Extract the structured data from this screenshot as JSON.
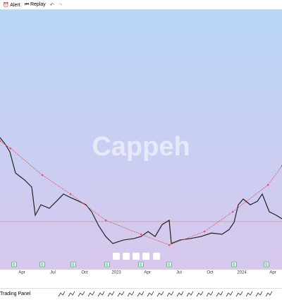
{
  "toolbar": {
    "alert": "Alert",
    "replay": "Replay"
  },
  "watermark": "Cappeh",
  "bottom_bar": {
    "trading_panel": "Trading Panel"
  },
  "chart_data": {
    "type": "line",
    "xlim": [
      0,
      100
    ],
    "ylim": [
      0,
      100
    ],
    "xticks": [
      {
        "value": 7.75,
        "label": "Apr"
      },
      {
        "value": 18.75,
        "label": "Jul"
      },
      {
        "value": 30,
        "label": "Oct"
      },
      {
        "value": 41.25,
        "label": "2023"
      },
      {
        "value": 52.25,
        "label": "Apr"
      },
      {
        "value": 63.5,
        "label": "Jul"
      },
      {
        "value": 74.5,
        "label": "Oct"
      },
      {
        "value": 85.75,
        "label": "2024"
      },
      {
        "value": 96.75,
        "label": "Apr"
      }
    ],
    "series": [
      {
        "color": "#222222",
        "x": [
          0,
          2,
          3.5,
          5.5,
          8.75,
          11.25,
          12.5,
          14.5,
          17.5,
          20,
          22.5,
          25,
          28,
          30.5,
          32.5,
          35,
          37.5,
          40,
          43.75,
          47.5,
          50,
          52.5,
          55,
          57.5,
          60,
          60.75,
          63.75,
          67.5,
          71.25,
          75,
          78.75,
          81.25,
          83,
          84.5,
          86.25,
          88.75,
          91.25,
          93,
          94.5,
          95.5,
          98,
          100
        ],
        "values": [
          48.9,
          46.0,
          43.2,
          34.7,
          31.9,
          29.1,
          17.8,
          22.0,
          20.6,
          23.4,
          26.3,
          24.9,
          23.4,
          22.0,
          19.2,
          13.6,
          9.3,
          6.5,
          7.9,
          8.5,
          9.3,
          11.3,
          9.3,
          14.1,
          15.8,
          6.5,
          7.9,
          8.5,
          9.3,
          10.7,
          10.2,
          12.1,
          15.0,
          22.0,
          24.3,
          22.0,
          23.4,
          26.3,
          22.0,
          19.2,
          17.8,
          16.4
        ]
      },
      {
        "color": "#e05a6a",
        "x": [
          0,
          3.75,
          15,
          25,
          37.5,
          50,
          60,
          72.5,
          82.5,
          95,
          100
        ],
        "values": [
          47.5,
          44.6,
          33.9,
          26.3,
          15.8,
          10.2,
          5.9,
          11.3,
          19.2,
          29.9,
          37.6
        ]
      }
    ],
    "price_line": 15.3,
    "events": {
      "label": "E",
      "x": [
        5,
        15,
        26,
        38,
        50,
        60,
        83,
        94.5
      ]
    }
  }
}
